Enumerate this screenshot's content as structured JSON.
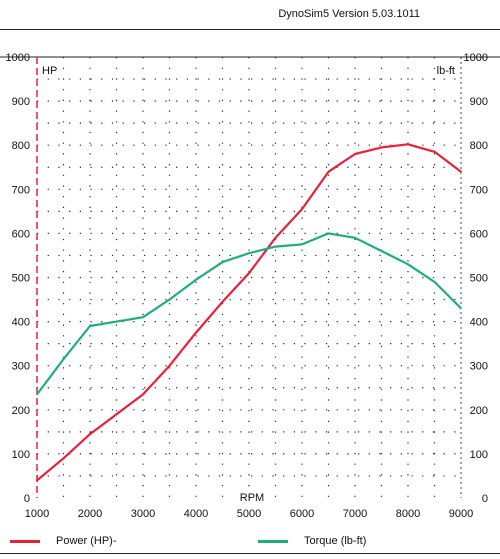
{
  "header": {
    "title": "DynoSim5  Version 5.03.1011"
  },
  "chart_data": {
    "type": "line",
    "title": "",
    "xlabel": "RPM",
    "ylabel_left": "HP",
    "ylabel_right": "lb-ft",
    "xlim": [
      1000,
      9000
    ],
    "ylim": [
      0,
      1000
    ],
    "x_ticks": [
      "1000",
      "2000",
      "3000",
      "4000",
      "5000",
      "6000",
      "7000",
      "8000",
      "9000"
    ],
    "y_ticks": [
      "0",
      "100",
      "200",
      "300",
      "400",
      "500",
      "600",
      "700",
      "800",
      "900",
      "1000"
    ],
    "grid": true,
    "legend_position": "bottom",
    "series": [
      {
        "name": "Power (HP)-",
        "color": "#e8213a",
        "x": [
          1000,
          1500,
          2000,
          2500,
          3000,
          3500,
          4000,
          4500,
          5000,
          5500,
          6000,
          6500,
          7000,
          7500,
          8000,
          8500,
          9000
        ],
        "y": [
          40,
          90,
          145,
          190,
          235,
          300,
          375,
          445,
          510,
          590,
          655,
          740,
          780,
          795,
          802,
          785,
          740
        ]
      },
      {
        "name": "Torque (lb-ft)",
        "color": "#1fae7a",
        "x": [
          1000,
          1500,
          2000,
          2500,
          3000,
          3500,
          4000,
          4500,
          5000,
          5500,
          6000,
          6500,
          7000,
          7500,
          8000,
          8500,
          9000
        ],
        "y": [
          235,
          315,
          390,
          400,
          410,
          450,
          495,
          535,
          555,
          570,
          575,
          600,
          590,
          560,
          530,
          490,
          430
        ]
      }
    ]
  }
}
